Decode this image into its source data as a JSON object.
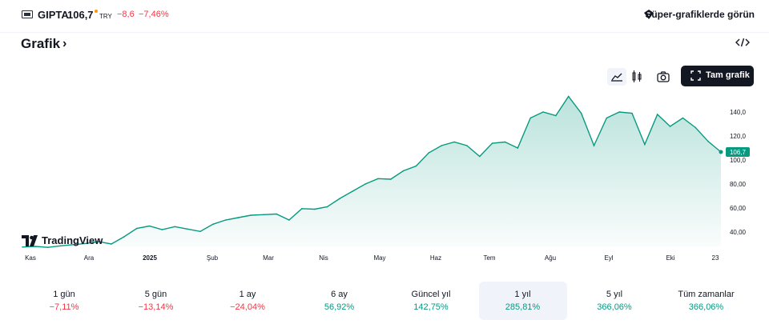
{
  "header": {
    "symbol": "GIPTA",
    "price": "106,7",
    "currency": "TRY",
    "change": "−8,6",
    "change_pct": "−7,46%",
    "super_charts_label": "Süper-grafiklerde görün"
  },
  "section": {
    "title": "Grafik"
  },
  "toolbar": {
    "area_icon": "area-chart-icon",
    "candle_icon": "candlestick-icon",
    "camera_icon": "camera-icon",
    "full_chart_label": "Tam grafik"
  },
  "colors": {
    "up": "#089981",
    "down": "#f23645",
    "line": "#089981",
    "accent_dot": "#ff9800"
  },
  "chart_data": {
    "type": "area",
    "series": [
      {
        "x": [
          "2024-11-01",
          "2024-11-08",
          "2024-11-15",
          "2024-11-22",
          "2024-11-29",
          "2024-12-06",
          "2024-12-13",
          "2024-12-20",
          "2024-12-27",
          "2025-01-03",
          "2025-01-10",
          "2025-01-17",
          "2025-01-24",
          "2025-01-31",
          "2025-02-07",
          "2025-02-14",
          "2025-02-21",
          "2025-02-28",
          "2025-03-07",
          "2025-03-14",
          "2025-03-21",
          "2025-03-28",
          "2025-04-04",
          "2025-04-11",
          "2025-04-18",
          "2025-04-25",
          "2025-05-02",
          "2025-05-09",
          "2025-05-16",
          "2025-05-23",
          "2025-05-30",
          "2025-06-06",
          "2025-06-13",
          "2025-06-20",
          "2025-06-27",
          "2025-07-04",
          "2025-07-11",
          "2025-07-18",
          "2025-07-25",
          "2025-08-01",
          "2025-08-08",
          "2025-08-15",
          "2025-08-22",
          "2025-08-29",
          "2025-09-05",
          "2025-09-12",
          "2025-09-19",
          "2025-09-26",
          "2025-10-03",
          "2025-10-10",
          "2025-10-17",
          "2025-10-24",
          "2025-10-31",
          "2025-11-07",
          "2025-11-14",
          "2025-11-21"
        ],
        "values": [
          27.5,
          28.0,
          27.2,
          28.5,
          29.5,
          30.5,
          32.0,
          30.0,
          36.0,
          43.0,
          45.0,
          42.0,
          44.5,
          42.5,
          40.5,
          46.5,
          50.0,
          52.0,
          54.0,
          54.5,
          55.0,
          50.0,
          59.5,
          59.0,
          61.0,
          68.0,
          74.0,
          80.0,
          84.5,
          84.0,
          91.0,
          95.0,
          106.0,
          112.0,
          115.0,
          112.0,
          103.0,
          114.0,
          115.0,
          110.0,
          135.0,
          140.0,
          137.0,
          153.0,
          139.0,
          112.0,
          135.0,
          140.0,
          139.0,
          113.0,
          138.0,
          128.0,
          135.0,
          127.0,
          115.5,
          106.7
        ]
      }
    ],
    "x_ticks": [
      "Kas",
      "Ara",
      "2025",
      "Şub",
      "Mar",
      "Nis",
      "May",
      "Haz",
      "Tem",
      "Ağu",
      "Eyl",
      "Eki",
      "23"
    ],
    "y_ticks": [
      "40,00",
      "60,00",
      "80,00",
      "100,0",
      "120,0",
      "140,0"
    ],
    "ylim": [
      28,
      160
    ],
    "last_label": "106,7",
    "grid": false
  },
  "watermark": {
    "text": "TradingView"
  },
  "periods": [
    {
      "label": "1 gün",
      "change": "−7,11%",
      "dir": "down"
    },
    {
      "label": "5 gün",
      "change": "−13,14%",
      "dir": "down"
    },
    {
      "label": "1 ay",
      "change": "−24,04%",
      "dir": "down"
    },
    {
      "label": "6 ay",
      "change": "56,92%",
      "dir": "up"
    },
    {
      "label": "Güncel yıl",
      "change": "142,75%",
      "dir": "up"
    },
    {
      "label": "1 yıl",
      "change": "285,81%",
      "dir": "up",
      "selected": true
    },
    {
      "label": "5 yıl",
      "change": "366,06%",
      "dir": "up"
    },
    {
      "label": "Tüm zamanlar",
      "change": "366,06%",
      "dir": "up"
    }
  ]
}
